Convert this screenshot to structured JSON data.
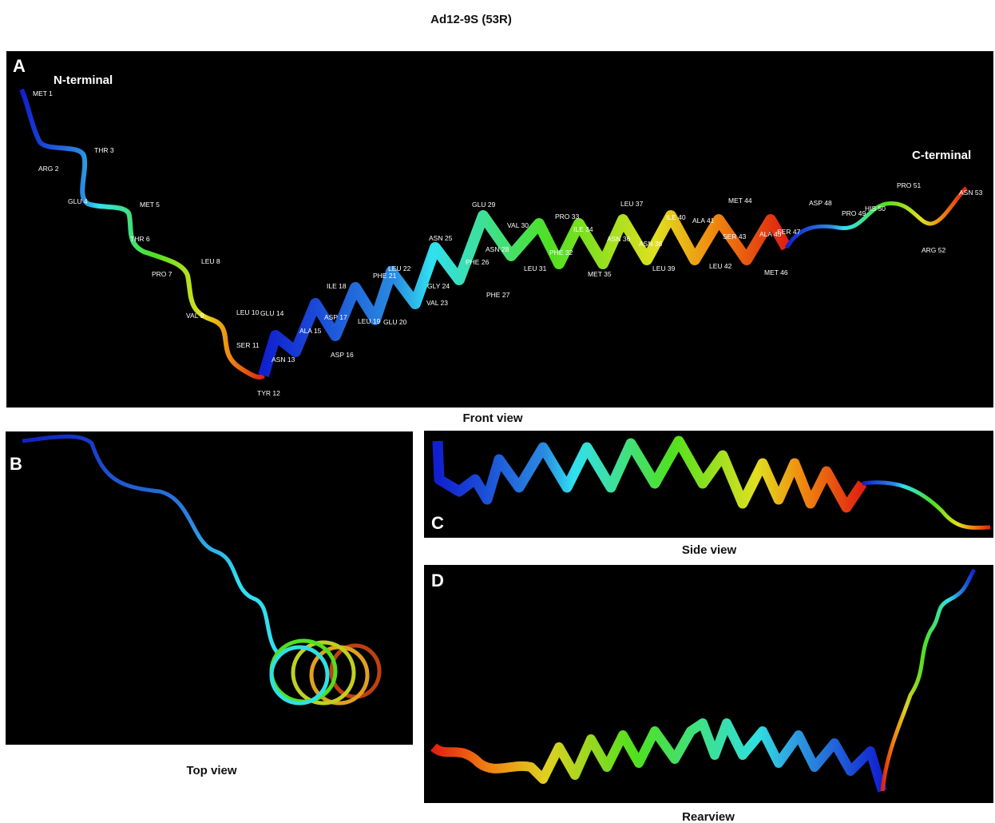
{
  "title": "Ad12-9S (53R)",
  "panels": [
    {
      "letter": "A",
      "caption": "Front view"
    },
    {
      "letter": "B",
      "caption": "Top view"
    },
    {
      "letter": "C",
      "caption": "Side view"
    },
    {
      "letter": "D",
      "caption": "Rearview"
    }
  ],
  "terminals": {
    "n": "N-terminal",
    "c": "C-terminal"
  },
  "residues": [
    "MET 1",
    "ARG 2",
    "THR 3",
    "GLU 4",
    "MET 5",
    "THR 6",
    "PRO 7",
    "LEU 8",
    "VAL 9",
    "LEU 10",
    "SER 11",
    "TYR 12",
    "ASN 13",
    "GLU 14",
    "ALA 15",
    "ASP 16",
    "ASP 17",
    "ILE 18",
    "LEU 19",
    "GLU 20",
    "PHE 21",
    "LEU 22",
    "VAL 23",
    "GLY 24",
    "ASN 25",
    "PHE 26",
    "PHE 27",
    "ASN 28",
    "GLU 29",
    "VAL 30",
    "LEU 31",
    "PHE 32",
    "PRO 33",
    "ILE 34",
    "MET 35",
    "ASN 36",
    "LEU 37",
    "ASN 38",
    "LEU 39",
    "ILE 40",
    "ALA 41",
    "LEU 42",
    "SER 43",
    "MET 44",
    "ALA 45",
    "MET 46",
    "SER 47",
    "ASP 48",
    "PRO 49",
    "HIS 50",
    "PRO 51",
    "ARG 52",
    "ASN 53"
  ]
}
